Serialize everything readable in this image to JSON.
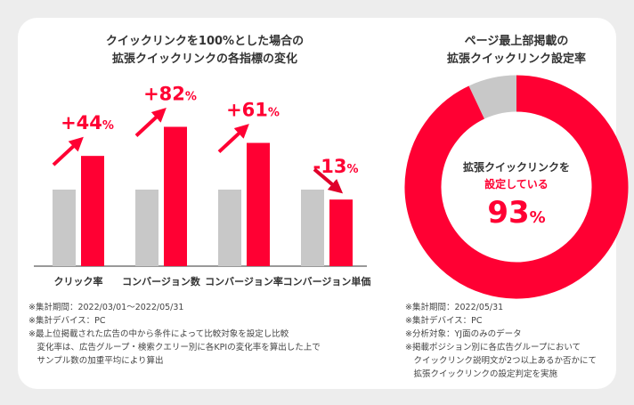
{
  "left": {
    "title_line1": "クイックリンクを100%とした場合の",
    "title_line2": "拡張クイックリンクの各指標の変化",
    "notes": [
      "※集計期間：2022/03/01～2022/05/31",
      "※集計デバイス：PC",
      "※最上位掲載された広告の中から条件によって比較対象を設定し比較",
      "　変化率は、広告グループ・検索クエリー別に各KPIの変化率を算出した上で",
      "　サンプル数の加重平均により算出"
    ]
  },
  "right": {
    "title_line1": "ページ最上部掲載の",
    "title_line2": "拡張クイックリンク設定率",
    "center_line1": "拡張クイックリンクを",
    "center_line2": "設定している",
    "center_value": "93",
    "center_unit": "%",
    "notes": [
      "※集計期間：2022/05/31",
      "※集計デバイス：PC",
      "※分析対象：YJ面のみのデータ",
      "※掲載ポジション別に各広告グループにおいて",
      "　クイックリンク説明文が2つ以上あるか否かにて",
      "　拡張クイックリンクの設定判定を実施"
    ]
  },
  "chart_data": [
    {
      "type": "bar",
      "categories": [
        "クリック率",
        "コンバージョン数",
        "コンバージョン率",
        "コンバージョン単価"
      ],
      "series": [
        {
          "values": [
            100,
            100,
            100,
            100
          ],
          "color": "#c8c8c8"
        },
        {
          "values": [
            144,
            182,
            161,
            87
          ],
          "color": "#ff0033"
        }
      ],
      "data_labels": [
        "+44%",
        "+82%",
        "+61%",
        "-13%"
      ],
      "directions": [
        "up",
        "up",
        "up",
        "down"
      ]
    },
    {
      "type": "pie",
      "donut": true,
      "values": [
        93,
        7
      ],
      "colors": [
        "#ff0033",
        "#c8c8c8"
      ]
    }
  ]
}
